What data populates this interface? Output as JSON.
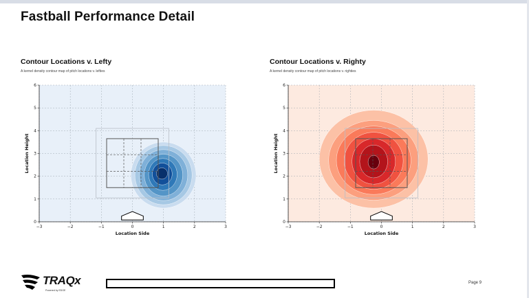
{
  "page": {
    "title": "Fastball Performance Detail",
    "page_number": "Page 9"
  },
  "logo": {
    "name": "TRAQx",
    "powered_by": "Powered by EDGE"
  },
  "colors": {
    "lefty_background": "#e8f0f9",
    "lefty_palette": [
      "#e2ecf7",
      "#c9dcef",
      "#a6c8e4",
      "#7fb0d8",
      "#5495c7",
      "#2f79b8",
      "#12509a",
      "#08306b"
    ],
    "righty_background": "#fdeae0",
    "righty_palette": [
      "#fde0d2",
      "#fcc1a6",
      "#fc9f7e",
      "#fa7a5a",
      "#f05240",
      "#d8282a",
      "#b3141b",
      "#67000d"
    ]
  },
  "panels": [
    {
      "title": "Contour Locations v. Lefty",
      "subtitle": "A kernel density contour map of pitch locations v. lefties"
    },
    {
      "title": "Contour Locations v. Righty",
      "subtitle": "A kernel density contour map of pitch locations v. righties"
    }
  ],
  "chart_data": [
    {
      "type": "contour",
      "title": "Contour Locations v. Lefty",
      "subtitle": "A kernel density contour map of pitch locations v. lefties",
      "xlabel": "Location Side",
      "ylabel": "Location Height",
      "xlim": [
        -3,
        3
      ],
      "ylim": [
        0,
        6
      ],
      "x_ticks": [
        "−3",
        "−2",
        "−1",
        "0",
        "1",
        "2",
        "3"
      ],
      "y_ticks": [
        "0",
        "1",
        "2",
        "3",
        "4",
        "5",
        "6"
      ],
      "grid": true,
      "density_peak": {
        "x": 1.0,
        "y": 2.1
      },
      "contour_levels": [
        {
          "level": 1,
          "cx": 1.0,
          "cy": 2.05,
          "rx": 1.05,
          "ry": 1.45
        },
        {
          "level": 2,
          "cx": 1.0,
          "cy": 2.05,
          "rx": 0.92,
          "ry": 1.3
        },
        {
          "level": 3,
          "cx": 1.0,
          "cy": 2.05,
          "rx": 0.78,
          "ry": 1.12
        },
        {
          "level": 4,
          "cx": 1.0,
          "cy": 2.05,
          "rx": 0.62,
          "ry": 0.92
        },
        {
          "level": 5,
          "cx": 0.98,
          "cy": 2.08,
          "rx": 0.46,
          "ry": 0.7
        },
        {
          "level": 6,
          "cx": 0.96,
          "cy": 2.1,
          "rx": 0.32,
          "ry": 0.48
        },
        {
          "level": 7,
          "cx": 0.95,
          "cy": 2.12,
          "rx": 0.18,
          "ry": 0.25
        }
      ]
    },
    {
      "type": "contour",
      "title": "Contour Locations v. Righty",
      "subtitle": "A kernel density contour map of pitch locations v. righties",
      "xlabel": "Location Side",
      "ylabel": "Location Height",
      "xlim": [
        -3,
        3
      ],
      "ylim": [
        0,
        6
      ],
      "x_ticks": [
        "−3",
        "−2",
        "−1",
        "0",
        "1",
        "2",
        "3"
      ],
      "y_ticks": [
        "0",
        "1",
        "2",
        "3",
        "4",
        "5",
        "6"
      ],
      "grid": true,
      "density_peak": {
        "x": -0.25,
        "y": 2.65
      },
      "contour_levels": [
        {
          "level": 1,
          "cx": -0.25,
          "cy": 2.75,
          "rx": 1.75,
          "ry": 2.15
        },
        {
          "level": 2,
          "cx": -0.25,
          "cy": 2.7,
          "rx": 1.45,
          "ry": 1.75
        },
        {
          "level": 3,
          "cx": -0.25,
          "cy": 2.7,
          "rx": 1.2,
          "ry": 1.5
        },
        {
          "level": 4,
          "cx": -0.25,
          "cy": 2.68,
          "rx": 0.95,
          "ry": 1.25
        },
        {
          "level": 5,
          "cx": -0.25,
          "cy": 2.65,
          "rx": 0.7,
          "ry": 1.0
        },
        {
          "level": 6,
          "cx": -0.25,
          "cy": 2.65,
          "rx": 0.45,
          "ry": 0.72
        },
        {
          "level": 7,
          "cx": -0.25,
          "cy": 2.62,
          "rx": 0.18,
          "ry": 0.3
        }
      ]
    }
  ]
}
